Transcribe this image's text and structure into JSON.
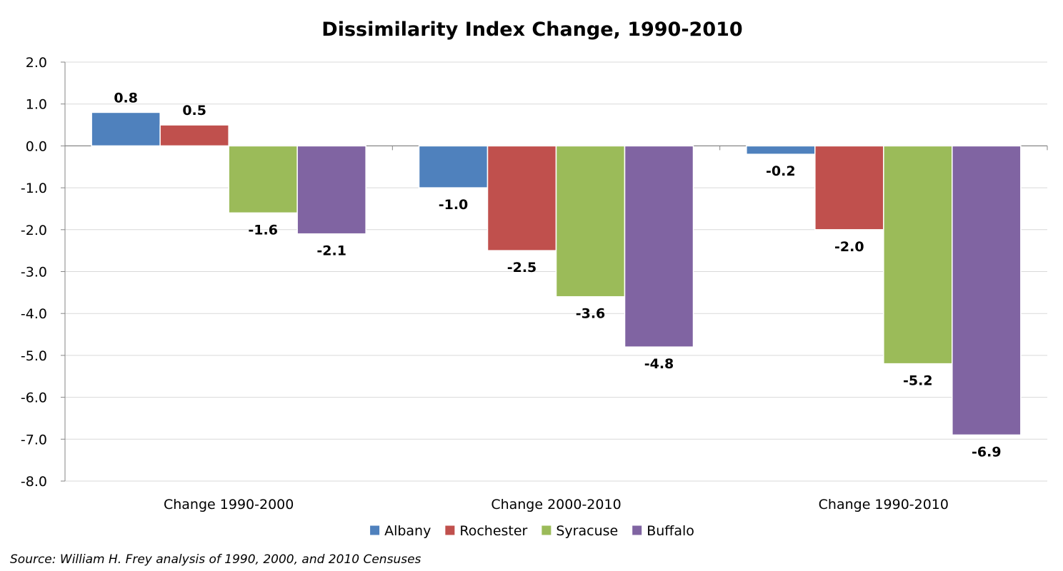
{
  "chart_data": {
    "type": "bar",
    "title": "Dissimilarity Index Change, 1990-2010",
    "categories": [
      "Change 1990-2000",
      "Change 2000-2010",
      "Change 1990-2010"
    ],
    "series": [
      {
        "name": "Albany",
        "color": "#4F81BD",
        "values": [
          0.8,
          -1.0,
          -0.2
        ]
      },
      {
        "name": "Rochester",
        "color": "#C0504D",
        "values": [
          0.5,
          -2.5,
          -2.0
        ]
      },
      {
        "name": "Syracuse",
        "color": "#9BBB59",
        "values": [
          -1.6,
          -3.6,
          -5.2
        ]
      },
      {
        "name": "Buffalo",
        "color": "#8064A2",
        "values": [
          -2.1,
          -4.8,
          -6.9
        ]
      }
    ],
    "ylim": [
      -8.0,
      2.0
    ],
    "yticks": [
      "2.0",
      "1.0",
      "0.0",
      "-1.0",
      "-2.0",
      "-3.0",
      "-4.0",
      "-5.0",
      "-6.0",
      "-7.0",
      "-8.0"
    ],
    "grid": true,
    "legend_position": "bottom",
    "source": "Source: William H. Frey analysis of 1990, 2000, and 2010 Censuses"
  }
}
